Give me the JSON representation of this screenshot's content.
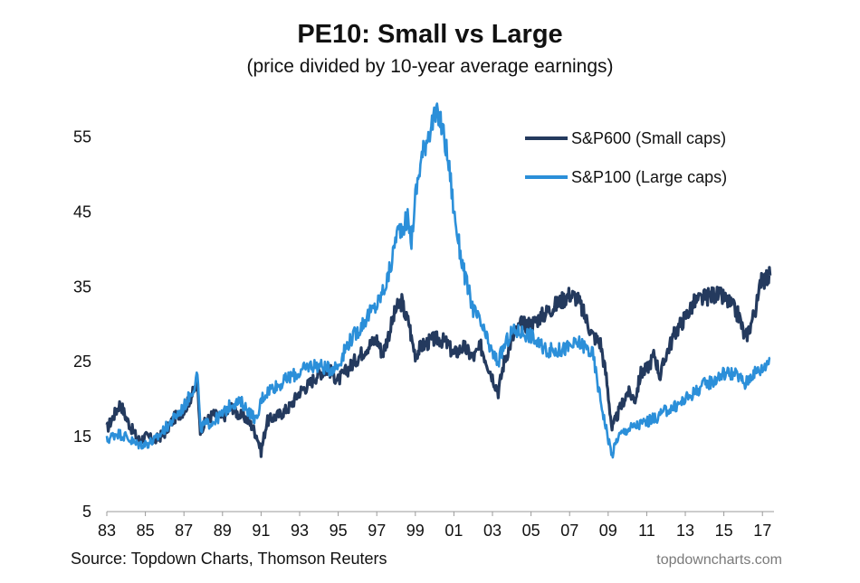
{
  "chart_data": {
    "type": "line",
    "title": "PE10: Small vs Large",
    "subtitle": "(price divided by 10-year average earnings)",
    "xlabel": "",
    "ylabel": "",
    "xlim": [
      1983,
      2017.6
    ],
    "ylim": [
      5,
      60
    ],
    "yticks": [
      5,
      15,
      25,
      35,
      45,
      55
    ],
    "xtick_years": [
      1983,
      1985,
      1987,
      1989,
      1991,
      1993,
      1995,
      1997,
      1999,
      2001,
      2003,
      2005,
      2007,
      2009,
      2011,
      2013,
      2015,
      2017
    ],
    "xtick_labels": [
      "83",
      "85",
      "87",
      "89",
      "91",
      "93",
      "95",
      "97",
      "99",
      "01",
      "03",
      "05",
      "07",
      "09",
      "11",
      "13",
      "15",
      "17"
    ],
    "grid": false,
    "legend": "top-right",
    "series": [
      {
        "name": "S&P600 (Small caps)",
        "color": "#243a5e",
        "x": [
          1983.0,
          1983.3,
          1983.7,
          1984.0,
          1984.4,
          1984.7,
          1985.0,
          1985.5,
          1986.0,
          1986.5,
          1987.0,
          1987.5,
          1987.7,
          1987.85,
          1988.0,
          1988.5,
          1989.0,
          1989.5,
          1989.8,
          1990.2,
          1990.5,
          1990.8,
          1991.0,
          1991.3,
          1991.6,
          1992.0,
          1992.5,
          1993.0,
          1993.5,
          1994.0,
          1994.5,
          1995.0,
          1995.5,
          1996.0,
          1996.5,
          1997.0,
          1997.3,
          1997.6,
          1998.0,
          1998.3,
          1998.5,
          1998.7,
          1998.8,
          1999.0,
          1999.3,
          1999.6,
          2000.0,
          2000.3,
          2000.6,
          2001.0,
          2001.5,
          2002.0,
          2002.4,
          2002.7,
          2003.0,
          2003.3,
          2003.6,
          2004.0,
          2004.5,
          2005.0,
          2005.5,
          2006.0,
          2006.5,
          2007.0,
          2007.4,
          2007.8,
          2008.2,
          2008.6,
          2008.9,
          2009.2,
          2009.5,
          2010.0,
          2010.4,
          2010.7,
          2011.0,
          2011.4,
          2011.7,
          2012.0,
          2012.5,
          2013.0,
          2013.5,
          2014.0,
          2014.5,
          2015.0,
          2015.4,
          2015.8,
          2016.1,
          2016.4,
          2016.8,
          2016.95,
          2017.1,
          2017.4
        ],
        "y": [
          16,
          17.5,
          19.5,
          17.5,
          15.5,
          14.5,
          15,
          14.5,
          15.5,
          17.5,
          18.5,
          21,
          22,
          16,
          16.5,
          18,
          17.5,
          19,
          18,
          17.5,
          16.5,
          15,
          13,
          17,
          17.5,
          18,
          19,
          21,
          22,
          23.5,
          24,
          22.5,
          24,
          25.5,
          27,
          28,
          26,
          28.5,
          32,
          33,
          31,
          30,
          28,
          26,
          27,
          27.5,
          28,
          28,
          27.5,
          26,
          27,
          25.5,
          27,
          25,
          23,
          21,
          25,
          28,
          30,
          30,
          31,
          32,
          33,
          34,
          33.5,
          31,
          28.5,
          27.5,
          23,
          16,
          18,
          21,
          20,
          23.5,
          24,
          26,
          23,
          26,
          29,
          31,
          33,
          33.5,
          34,
          33.5,
          32.5,
          31,
          28,
          30,
          33.5,
          37,
          36,
          36.5
        ]
      },
      {
        "name": "S&P100 (Large caps)",
        "color": "#2b8fd9",
        "x": [
          1983.0,
          1983.5,
          1984.0,
          1984.5,
          1985.0,
          1985.5,
          1986.0,
          1986.5,
          1987.0,
          1987.5,
          1987.7,
          1987.85,
          1988.0,
          1988.5,
          1989.0,
          1989.5,
          1990.0,
          1990.5,
          1990.8,
          1991.0,
          1991.5,
          1992.0,
          1992.5,
          1993.0,
          1993.5,
          1994.0,
          1994.5,
          1995.0,
          1995.5,
          1996.0,
          1996.5,
          1997.0,
          1997.5,
          1997.8,
          1998.0,
          1998.3,
          1998.6,
          1998.8,
          1999.0,
          1999.3,
          1999.6,
          1999.9,
          2000.2,
          2000.5,
          2000.8,
          2001.0,
          2001.3,
          2001.6,
          2002.0,
          2002.4,
          2002.7,
          2003.0,
          2003.3,
          2003.6,
          2004.0,
          2004.5,
          2005.0,
          2005.5,
          2006.0,
          2006.5,
          2007.0,
          2007.5,
          2007.8,
          2008.2,
          2008.6,
          2008.9,
          2009.2,
          2009.5,
          2010.0,
          2010.5,
          2011.0,
          2011.5,
          2012.0,
          2012.5,
          2013.0,
          2013.5,
          2014.0,
          2014.5,
          2015.0,
          2015.4,
          2015.8,
          2016.1,
          2016.5,
          2017.0,
          2017.4
        ],
        "y": [
          14.5,
          15.5,
          15,
          14,
          14,
          14.5,
          16,
          17.5,
          19,
          21.5,
          23.5,
          16,
          16.5,
          17,
          18,
          19.5,
          19.5,
          18,
          17,
          20,
          21.5,
          22,
          23,
          23.5,
          24.5,
          24.5,
          24,
          24.5,
          27.5,
          29,
          31,
          32.5,
          35.5,
          38.5,
          42,
          43,
          44,
          41,
          47,
          52,
          55,
          57,
          58,
          55,
          50,
          45,
          40,
          36,
          32,
          30,
          28,
          26,
          25,
          27,
          29,
          29,
          28.5,
          27,
          26.5,
          26.5,
          27,
          27.5,
          27,
          26,
          20,
          16,
          12.5,
          15,
          16,
          16.5,
          17,
          17.5,
          18.5,
          19,
          20,
          21,
          22,
          22.5,
          23.5,
          23.5,
          23,
          22,
          23.5,
          24,
          25.5
        ]
      }
    ]
  },
  "footer": {
    "source": "Source: Topdown Charts, Thomson Reuters",
    "watermark": "topdowncharts.com"
  }
}
